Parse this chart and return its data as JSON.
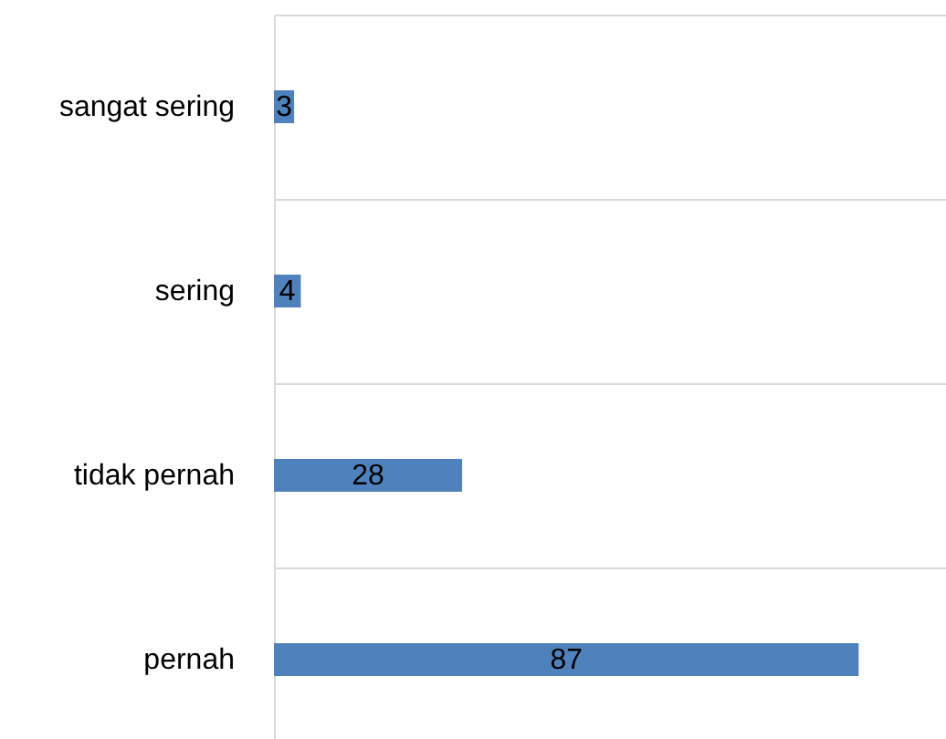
{
  "chart_data": {
    "type": "bar",
    "orientation": "horizontal",
    "categories": [
      "sangat sering",
      "sering",
      "tidak pernah",
      "pernah"
    ],
    "values": [
      3,
      4,
      28,
      87
    ],
    "color": "#4f81bd",
    "xlim": [
      0,
      100
    ],
    "data_labels": true,
    "grid": "y",
    "tick_labels": "y"
  }
}
